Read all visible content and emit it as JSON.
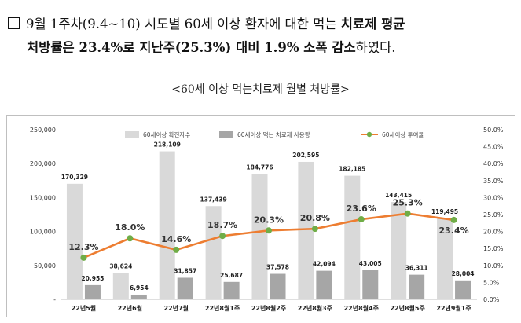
{
  "paragraph": {
    "line1_text": "9월 1주차(9.4~10) 시도별 60세 이상 환자에 대한 먹는 ",
    "line1_bold": "치료제 평균",
    "line2_bold1": "처방률은 23.4%로 지난주(25.3%) 대비 1.9% 소폭 감소",
    "line2_tail": "하였다."
  },
  "chart_title": "<60세 이상 먹는치료제 월별 처방률>",
  "chart_data": {
    "type": "bar",
    "categories": [
      "22년5월",
      "22년6월",
      "22년7월",
      "22년8월1주",
      "22년8월2주",
      "22년8월3주",
      "22년8월4주",
      "22년8월5주",
      "22년9월1주"
    ],
    "series": [
      {
        "name": "60세이상 확진자수",
        "type": "bar",
        "color": "#d9d9d9",
        "values": [
          170329,
          38624,
          218109,
          137439,
          184776,
          202595,
          182185,
          143415,
          119495
        ],
        "labels": [
          "170,329",
          "38,624",
          "218,109",
          "137,439",
          "184,776",
          "202,595",
          "182,185",
          "143,415",
          "119,495"
        ]
      },
      {
        "name": "60세이상 먹는 치료제 사용량",
        "type": "bar",
        "color": "#a6a6a6",
        "values": [
          20955,
          6954,
          31857,
          25687,
          37578,
          42094,
          43005,
          36311,
          28004
        ],
        "labels": [
          "20,955",
          "6,954",
          "31,857",
          "25,687",
          "37,578",
          "42,094",
          "43,005",
          "36,311",
          "28,004"
        ]
      },
      {
        "name": "60세이상 투여율",
        "type": "line",
        "color": "#ed7d31",
        "marker_color": "#70ad47",
        "values": [
          12.3,
          18.0,
          14.6,
          18.7,
          20.3,
          20.8,
          23.6,
          25.3,
          23.4
        ],
        "labels": [
          "12.3%",
          "18.0%",
          "14.6%",
          "18.7%",
          "20.3%",
          "20.8%",
          "23.6%",
          "25.3%",
          "23.4%"
        ]
      }
    ],
    "y_left": {
      "min": 0,
      "max": 250000,
      "ticks": [
        0,
        50000,
        100000,
        150000,
        200000,
        250000
      ],
      "tick_labels": [
        "-",
        "50,000",
        "100,000",
        "150,000",
        "200,000",
        "250,000"
      ]
    },
    "y_right": {
      "min": 0,
      "max": 50,
      "ticks": [
        0,
        5,
        10,
        15,
        20,
        25,
        30,
        35,
        40,
        45,
        50
      ],
      "tick_labels": [
        "0.0%",
        "5.0%",
        "10.0%",
        "15.0%",
        "20.0%",
        "25.0%",
        "30.0%",
        "35.0%",
        "40.0%",
        "45.0%",
        "50.0%"
      ]
    },
    "legend": "top-center",
    "grid": false
  }
}
